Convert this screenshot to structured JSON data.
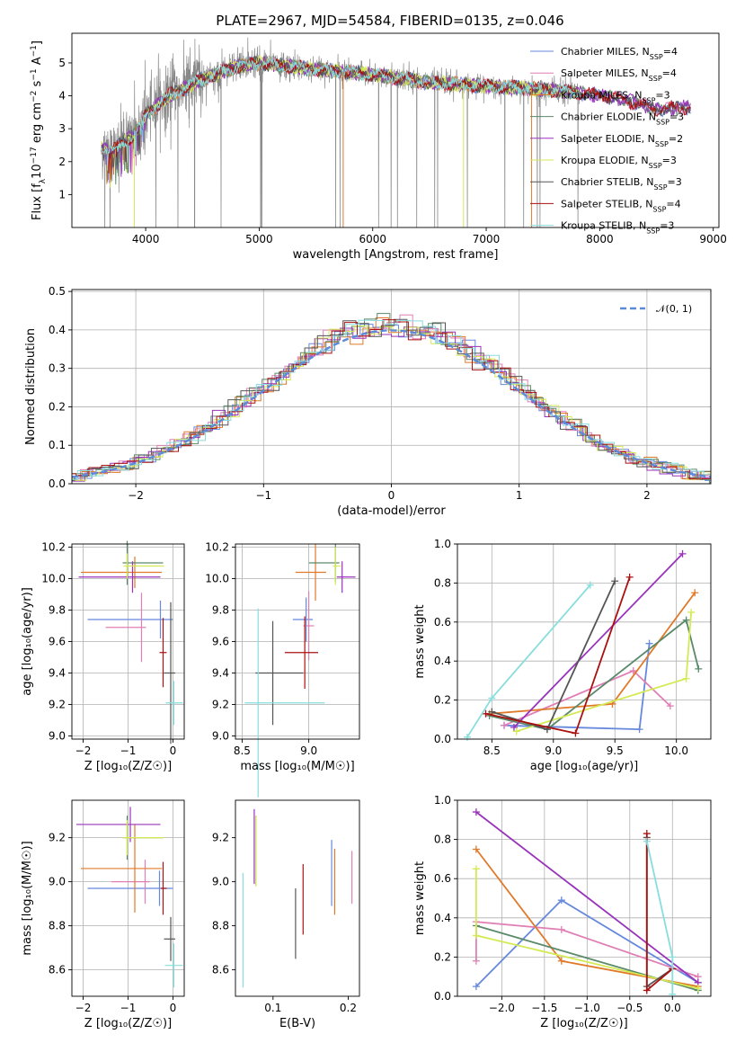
{
  "title": "PLATE=2967, MJD=54584, FIBERID=0135, z=0.046",
  "models": [
    {
      "name": "Chabrier MILES",
      "nssp": "4",
      "color": "#6688dd"
    },
    {
      "name": "Salpeter MILES",
      "nssp": "4",
      "color": "#e07fb5"
    },
    {
      "name": "Kroupa MILES",
      "nssp": "3",
      "color": "#e07a2a"
    },
    {
      "name": "Chabrier ELODIE",
      "nssp": "3",
      "color": "#5a8a6a"
    },
    {
      "name": "Salpeter ELODIE",
      "nssp": "2",
      "color": "#9933bb"
    },
    {
      "name": "Kroupa ELODIE",
      "nssp": "3",
      "color": "#d4ea55"
    },
    {
      "name": "Chabrier STELIB",
      "nssp": "3",
      "color": "#555555"
    },
    {
      "name": "Salpeter STELIB",
      "nssp": "4",
      "color": "#aa1111"
    },
    {
      "name": "Kroupa STELIB",
      "nssp": "3",
      "color": "#88dddd"
    }
  ],
  "legend_sub": "SSP",
  "chart_data": [
    {
      "id": "spectrum",
      "type": "line",
      "xlabel": "wavelength [Angstrom, rest frame]",
      "ylabel_parts": [
        "Flux [f",
        "λ",
        "10",
        "−17",
        " erg cm",
        "−2",
        " s",
        "−1",
        " A",
        "−1",
        "]"
      ],
      "xlim": [
        3350,
        9050
      ],
      "ylim": [
        0,
        5.9
      ],
      "xticks": [
        4000,
        5000,
        6000,
        7000,
        8000,
        9000
      ],
      "yticks": [
        1,
        2,
        3,
        4,
        5
      ],
      "data_color": "#888888",
      "data_range": [
        3610,
        7820
      ],
      "model_ranges": [
        [
          3610,
          8800
        ],
        [
          3610,
          8800
        ],
        [
          3610,
          7820
        ],
        [
          3610,
          8800
        ],
        [
          3610,
          8800
        ],
        [
          3610,
          7820
        ],
        [
          3610,
          8800
        ],
        [
          3610,
          8800
        ],
        [
          3610,
          7820
        ]
      ],
      "legend_placement": "right",
      "continuum": [
        [
          3610,
          2.4
        ],
        [
          3700,
          2.3
        ],
        [
          3800,
          2.6
        ],
        [
          3900,
          2.8
        ],
        [
          4000,
          3.4
        ],
        [
          4200,
          4.0
        ],
        [
          4500,
          4.5
        ],
        [
          4800,
          4.9
        ],
        [
          5000,
          5.0
        ],
        [
          5500,
          4.8
        ],
        [
          6000,
          4.65
        ],
        [
          6500,
          4.4
        ],
        [
          7000,
          4.3
        ],
        [
          7500,
          4.2
        ],
        [
          7820,
          4.1
        ],
        [
          8200,
          3.9
        ],
        [
          8500,
          3.6
        ],
        [
          8800,
          3.65
        ]
      ]
    },
    {
      "id": "residuals",
      "type": "step",
      "xlabel": "(data-model)/error",
      "ylabel": "Normed distribution",
      "xlim": [
        -2.5,
        2.5
      ],
      "ylim": [
        0,
        0.505
      ],
      "xticks": [
        -2,
        -1,
        0,
        1,
        2
      ],
      "yticks": [
        0.0,
        0.1,
        0.2,
        0.3,
        0.4,
        0.5
      ],
      "grid": true,
      "legend": "𝒩(0, 1)",
      "legend_placement": "top-right",
      "gauss_color": "#5b8bd8"
    },
    {
      "id": "age-vs-Z",
      "type": "errorbar",
      "xlabel": "Z [log₁₀(Z/Z☉)]",
      "ylabel": "age  [log₁₀(age/yr)]",
      "xlim": [
        -2.25,
        0.25
      ],
      "ylim": [
        8.98,
        10.22
      ],
      "xticks": [
        -2,
        -1,
        0
      ],
      "yticks": [
        9.0,
        9.2,
        9.4,
        9.6,
        9.8,
        10.0,
        10.2
      ],
      "grid": true,
      "points": [
        {
          "x": -0.28,
          "xe": [
            1.62,
            0.28
          ],
          "y": 9.74,
          "ye": 0.12
        },
        {
          "x": -0.7,
          "xe": [
            0.8,
            0.1
          ],
          "y": 9.69,
          "ye": 0.22
        },
        {
          "x": -0.85,
          "xe": [
            1.2,
            0.6
          ],
          "y": 10.04,
          "ye": 0.1
        },
        {
          "x": -1.02,
          "xe": [
            0.1,
            0.8
          ],
          "y": 10.1,
          "ye": 0.14
        },
        {
          "x": -0.9,
          "xe": [
            1.2,
            0.62
          ],
          "y": 10.01,
          "ye": 0.1
        },
        {
          "x": -1.02,
          "xe": [
            0.08,
            0.82
          ],
          "y": 10.08,
          "ye": 0.08
        },
        {
          "x": -0.05,
          "xe": [
            0.15,
            0.1
          ],
          "y": 9.4,
          "ye": 0.45
        },
        {
          "x": -0.22,
          "xe": [
            0.08,
            0.08
          ],
          "y": 9.53,
          "ye": 0.22
        },
        {
          "x": 0.02,
          "xe": [
            0.18,
            0.2
          ],
          "y": 9.21,
          "ye": 0.14
        }
      ]
    },
    {
      "id": "age-vs-mass",
      "type": "errorbar",
      "xlabel": "mass [log₁₀(M/M☉)]",
      "ylabel": "",
      "xlim": [
        8.45,
        9.38
      ],
      "ylim": [
        8.98,
        10.22
      ],
      "xticks": [
        8.5,
        9.0
      ],
      "yticks": [
        9.0,
        9.2,
        9.4,
        9.6,
        9.8,
        10.0,
        10.2
      ],
      "grid": true,
      "points": [
        {
          "x": 8.98,
          "xe": [
            0.1,
            0.05
          ],
          "y": 9.74,
          "ye": 0.14
        },
        {
          "x": 9.0,
          "xe": [
            0.04,
            0.04
          ],
          "y": 9.7,
          "ye": 0.22
        },
        {
          "x": 9.05,
          "xe": [
            0.15,
            0.08
          ],
          "y": 10.04,
          "ye": 0.18
        },
        {
          "x": 9.2,
          "xe": [
            0.2,
            0.03
          ],
          "y": 10.1,
          "ye": 0.12
        },
        {
          "x": 9.25,
          "xe": [
            0.04,
            0.1
          ],
          "y": 10.01,
          "ye": 0.1
        },
        {
          "x": 9.2,
          "xe": [
            0.02,
            0.04
          ],
          "y": 10.08,
          "ye": 0.12
        },
        {
          "x": 8.73,
          "xe": [
            0.13,
            0.23
          ],
          "y": 9.4,
          "ye": 0.33
        },
        {
          "x": 8.97,
          "xe": [
            0.15,
            0.1
          ],
          "y": 9.53,
          "ye": 0.23
        },
        {
          "x": 8.62,
          "xe": [
            0.1,
            0.5
          ],
          "y": 9.21,
          "ye": 0.6
        }
      ]
    },
    {
      "id": "weight-vs-age",
      "type": "line",
      "xlabel": "age  [log₁₀(age/yr)]",
      "ylabel": "mass weight",
      "xlim": [
        8.22,
        10.28
      ],
      "ylim": [
        0,
        1.0
      ],
      "xticks": [
        8.5,
        9.0,
        9.5,
        10.0
      ],
      "yticks": [
        0.0,
        0.2,
        0.4,
        0.6,
        0.8,
        1.0
      ],
      "grid": true,
      "series": [
        [
          [
            8.6,
            0.07
          ],
          [
            9.7,
            0.05
          ],
          [
            9.78,
            0.49
          ]
        ],
        [
          [
            8.6,
            0.07
          ],
          [
            9.65,
            0.35
          ],
          [
            9.95,
            0.17
          ]
        ],
        [
          [
            8.48,
            0.13
          ],
          [
            9.48,
            0.18
          ],
          [
            10.15,
            0.75
          ]
        ],
        [
          [
            8.48,
            0.12
          ],
          [
            8.95,
            0.05
          ],
          [
            10.08,
            0.61
          ],
          [
            10.18,
            0.36
          ]
        ],
        [
          [
            8.68,
            0.06
          ],
          [
            10.05,
            0.95
          ]
        ],
        [
          [
            8.7,
            0.04
          ],
          [
            10.08,
            0.31
          ],
          [
            10.12,
            0.65
          ]
        ],
        [
          [
            8.5,
            0.14
          ],
          [
            8.95,
            0.05
          ],
          [
            9.5,
            0.81
          ]
        ],
        [
          [
            8.45,
            0.13
          ],
          [
            9.18,
            0.03
          ],
          [
            9.62,
            0.83
          ]
        ],
        [
          [
            8.3,
            0.01
          ],
          [
            8.5,
            0.21
          ],
          [
            9.3,
            0.79
          ]
        ]
      ]
    },
    {
      "id": "mass-vs-Z",
      "type": "errorbar",
      "xlabel": "Z [log₁₀(Z/Z☉)]",
      "ylabel": "mass [log₁₀(M/M☉)]",
      "xlim": [
        -2.25,
        0.25
      ],
      "ylim": [
        8.48,
        9.37
      ],
      "xticks": [
        -2,
        -1,
        0
      ],
      "yticks": [
        8.6,
        8.8,
        9.0,
        9.2
      ],
      "grid": true,
      "points": [
        {
          "x": -0.3,
          "xe": [
            1.6,
            0.3
          ],
          "y": 8.97,
          "ye": 0.08
        },
        {
          "x": -0.62,
          "xe": [
            0.75,
            0.1
          ],
          "y": 9.0,
          "ye": 0.1
        },
        {
          "x": -0.85,
          "xe": [
            1.2,
            0.6
          ],
          "y": 9.06,
          "ye": 0.2
        },
        {
          "x": -1.02,
          "xe": [
            0.1,
            0.8
          ],
          "y": 9.2,
          "ye": 0.1
        },
        {
          "x": -0.95,
          "xe": [
            1.2,
            0.67
          ],
          "y": 9.26,
          "ye": 0.08
        },
        {
          "x": -1.02,
          "xe": [
            0.1,
            0.82
          ],
          "y": 9.2,
          "ye": 0.08
        },
        {
          "x": -0.05,
          "xe": [
            0.15,
            0.1
          ],
          "y": 8.74,
          "ye": 0.1
        },
        {
          "x": -0.22,
          "xe": [
            0.05,
            0.08
          ],
          "y": 8.97,
          "ye": 0.12
        },
        {
          "x": 0.02,
          "xe": [
            0.2,
            0.2
          ],
          "y": 8.62,
          "ye": 0.1
        }
      ]
    },
    {
      "id": "mass-vs-EBV",
      "type": "errorbar",
      "xlabel": "E(B-V)",
      "ylabel": "",
      "xlim": [
        0.05,
        0.215
      ],
      "ylim": [
        8.48,
        9.37
      ],
      "xticks": [
        0.1,
        0.2
      ],
      "yticks": [
        8.6,
        8.8,
        9.0,
        9.2
      ],
      "grid": false,
      "points": [
        {
          "x": 0.178,
          "xe": [
            0,
            0
          ],
          "y": 9.04,
          "ye": 0.15
        },
        {
          "x": 0.205,
          "xe": [
            0,
            0
          ],
          "y": 9.02,
          "ye": 0.12
        },
        {
          "x": 0.182,
          "xe": [
            0,
            0
          ],
          "y": 9.0,
          "ye": 0.15
        },
        {
          "x": 0.077,
          "xe": [
            0,
            0
          ],
          "y": 9.14,
          "ye": 0.16
        },
        {
          "x": 0.075,
          "xe": [
            0,
            0
          ],
          "y": 9.16,
          "ye": 0.17
        },
        {
          "x": 0.077,
          "xe": [
            0,
            0
          ],
          "y": 9.14,
          "ye": 0.16
        },
        {
          "x": 0.13,
          "xe": [
            0,
            0
          ],
          "y": 8.81,
          "ye": 0.16
        },
        {
          "x": 0.14,
          "xe": [
            0,
            0
          ],
          "y": 8.92,
          "ye": 0.16
        },
        {
          "x": 0.06,
          "xe": [
            0,
            0
          ],
          "y": 8.78,
          "ye": 0.26
        }
      ]
    },
    {
      "id": "weight-vs-Z",
      "type": "line",
      "xlabel": "Z [log₁₀(Z/Z☉)]",
      "ylabel": "mass weight",
      "xlim": [
        -2.52,
        0.45
      ],
      "ylim": [
        0,
        1.0
      ],
      "xticks": [
        -2.0,
        -1.5,
        -1.0,
        -0.5,
        0.0
      ],
      "yticks": [
        0.0,
        0.2,
        0.4,
        0.6,
        0.8,
        1.0
      ],
      "grid": true,
      "series": [
        [
          [
            -2.3,
            0.05
          ],
          [
            -1.3,
            0.49
          ],
          [
            0.3,
            0.07
          ]
        ],
        [
          [
            -2.3,
            0.18
          ],
          [
            -2.3,
            0.38
          ],
          [
            -1.3,
            0.34
          ],
          [
            0.3,
            0.1
          ]
        ],
        [
          [
            -2.3,
            0.75
          ],
          [
            -1.3,
            0.18
          ],
          [
            0.3,
            0.05
          ]
        ],
        [
          [
            -2.3,
            0.36
          ],
          [
            0.3,
            0.03
          ]
        ],
        [
          [
            -2.3,
            0.94
          ],
          [
            0.3,
            0.07
          ]
        ],
        [
          [
            -2.3,
            0.65
          ],
          [
            -2.3,
            0.31
          ],
          [
            0.3,
            0.04
          ]
        ],
        [
          [
            -0.3,
            0.81
          ],
          [
            -0.3,
            0.05
          ],
          [
            0.0,
            0.14
          ]
        ],
        [
          [
            -0.3,
            0.83
          ],
          [
            -0.3,
            0.03
          ],
          [
            0.0,
            0.14
          ]
        ],
        [
          [
            -0.3,
            0.79
          ],
          [
            0.0,
            0.2
          ],
          [
            0.0,
            0.01
          ]
        ]
      ]
    }
  ]
}
